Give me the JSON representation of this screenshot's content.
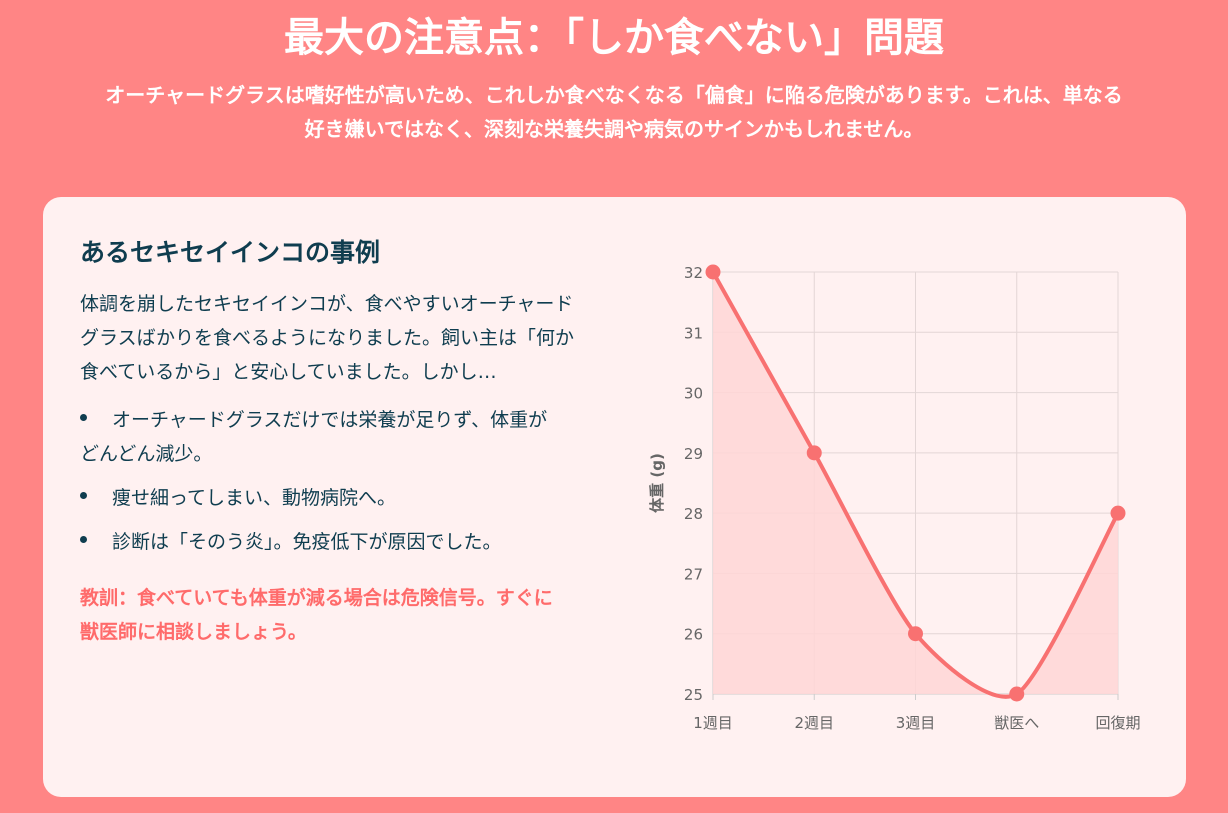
{
  "header": {
    "title": "最大の注意点：「しか食べない」問題",
    "subtitle": "オーチャードグラスは嗜好性が高いため、これしか食べなくなる「偏食」に陥る危険があります。これは、単なる好き嫌いではなく、深刻な栄養失調や病気のサインかもしれません。"
  },
  "case": {
    "title": "あるセキセイインコの事例",
    "intro": "体調を崩したセキセイインコが、食べやすいオーチャードグラスばかりを食べるようになりました。飼い主は「何か食べているから」と安心していました。しかし…",
    "bullets": [
      "オーチャードグラスだけでは栄養が足りず、体重がどんどん減少。",
      "痩せ細ってしまい、動物病院へ。",
      "診断は「そのう炎」。免疫低下が原因でした。"
    ],
    "lesson": "教訓：食べていても体重が減る場合は危険信号。すぐに獣医師に相談しましょう。"
  },
  "colors": {
    "background": "#ff8585",
    "card": "#fff1f1",
    "text": "#0f3d4f",
    "accent": "#ff6b6b",
    "line": "#f87171",
    "area": "#ffd6d6"
  },
  "chart_data": {
    "type": "area",
    "categories": [
      "1週目",
      "2週目",
      "3週目",
      "獣医へ",
      "回復期"
    ],
    "series": [
      {
        "values": [
          32,
          29,
          26,
          25,
          28
        ]
      }
    ],
    "title": "",
    "xlabel": "",
    "ylabel": "体重 (g)",
    "ylim": [
      25,
      32
    ],
    "yticks": [
      25,
      26,
      27,
      28,
      29,
      30,
      31,
      32
    ],
    "grid": true,
    "legend": "none"
  }
}
